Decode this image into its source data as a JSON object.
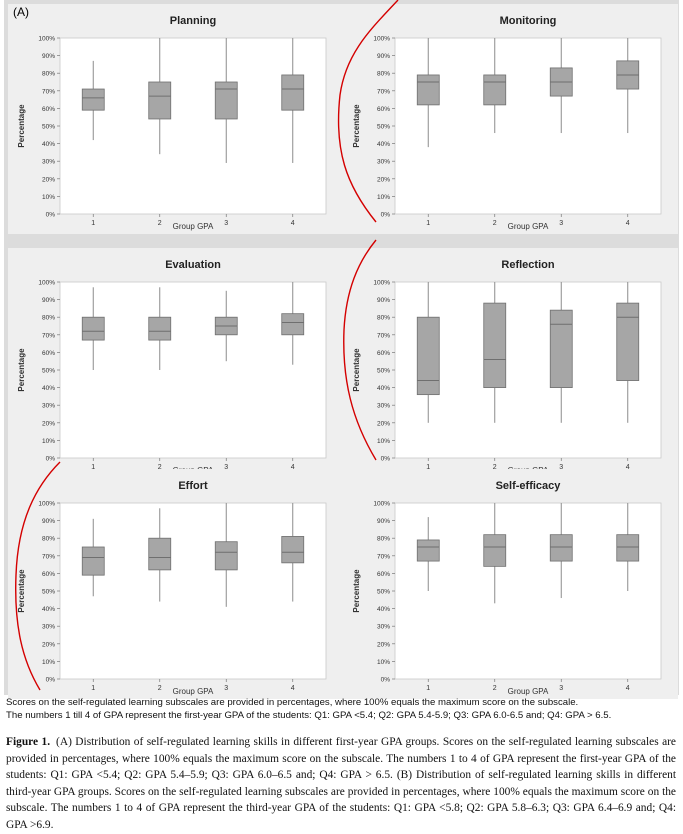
{
  "panel_letter": "(A)",
  "notes": [
    "Scores on the self-regulated learning subscales are provided in percentages, where 100% equals the maximum score on the subscale.",
    "The numbers 1 till 4 of GPA represent the first-year GPA of the students: Q1: GPA <5.4; Q2: GPA 5.4-5.9; Q3: GPA 6.0-6.5 and; Q4: GPA > 6.5."
  ],
  "caption": {
    "label": "Figure 1.",
    "text": "(A) Distribution of self-regulated learning skills in different first-year GPA groups. Scores on the self-regulated learning subscales are provided in percentages, where 100% equals the maximum score on the subscale. The numbers 1 to 4 of GPA represent the first-year GPA of the students: Q1: GPA <5.4; Q2: GPA 5.4–5.9; Q3: GPA 6.0–6.5 and; Q4: GPA > 6.5. (B) Distribution of self-regulated learning skills in different third-year GPA groups. Scores on the self-regulated learning subscales are provided in percentages, where 100% equals the maximum score on the subscale. The numbers 1 to 4 of GPA represent the third-year GPA of the students: Q1: GPA <5.8; Q2: GPA 5.8–6.3; Q3: GPA 6.4–6.9 and; Q4: GPA >6.9."
  },
  "colors": {
    "box_fill": "#a6a6a6",
    "box_stroke": "#6f6f6f",
    "whisker": "#8c8c8c",
    "annotation": "#d40000"
  },
  "chart_data": [
    {
      "type": "boxplot",
      "title": "Planning",
      "xlabel": "Group GPA",
      "ylabel": "Percentage",
      "categories": [
        "1",
        "2",
        "3",
        "4"
      ],
      "ylim": [
        0,
        100
      ],
      "yticks": [
        "0%",
        "10%",
        "20%",
        "30%",
        "40%",
        "50%",
        "60%",
        "70%",
        "80%",
        "90%",
        "100%"
      ],
      "boxes": [
        {
          "min": 42,
          "q1": 59,
          "median": 66,
          "q3": 71,
          "max": 87
        },
        {
          "min": 34,
          "q1": 54,
          "median": 67,
          "q3": 75,
          "max": 100
        },
        {
          "min": 29,
          "q1": 54,
          "median": 71,
          "q3": 75,
          "max": 100
        },
        {
          "min": 29,
          "q1": 59,
          "median": 71,
          "q3": 79,
          "max": 100
        }
      ]
    },
    {
      "type": "boxplot",
      "title": "Monitoring",
      "xlabel": "Group GPA",
      "ylabel": "Percentage",
      "categories": [
        "1",
        "2",
        "3",
        "4"
      ],
      "ylim": [
        0,
        100
      ],
      "yticks": [
        "0%",
        "10%",
        "20%",
        "30%",
        "40%",
        "50%",
        "60%",
        "70%",
        "80%",
        "90%",
        "100%"
      ],
      "boxes": [
        {
          "min": 38,
          "q1": 62,
          "median": 75,
          "q3": 79,
          "max": 100
        },
        {
          "min": 46,
          "q1": 62,
          "median": 75,
          "q3": 79,
          "max": 100
        },
        {
          "min": 46,
          "q1": 67,
          "median": 75,
          "q3": 83,
          "max": 100
        },
        {
          "min": 46,
          "q1": 71,
          "median": 79,
          "q3": 87,
          "max": 100
        }
      ]
    },
    {
      "type": "boxplot",
      "title": "Evaluation",
      "xlabel": "Group GPA",
      "ylabel": "Percentage",
      "categories": [
        "1",
        "2",
        "3",
        "4"
      ],
      "ylim": [
        0,
        100
      ],
      "yticks": [
        "0%",
        "10%",
        "20%",
        "30%",
        "40%",
        "50%",
        "60%",
        "70%",
        "80%",
        "90%",
        "100%"
      ],
      "boxes": [
        {
          "min": 50,
          "q1": 67,
          "median": 72,
          "q3": 80,
          "max": 97
        },
        {
          "min": 50,
          "q1": 67,
          "median": 72,
          "q3": 80,
          "max": 97
        },
        {
          "min": 55,
          "q1": 70,
          "median": 75,
          "q3": 80,
          "max": 95
        },
        {
          "min": 53,
          "q1": 70,
          "median": 77,
          "q3": 82,
          "max": 100
        }
      ]
    },
    {
      "type": "boxplot",
      "title": "Reflection",
      "xlabel": "Group GPA",
      "ylabel": "Percentage",
      "categories": [
        "1",
        "2",
        "3",
        "4"
      ],
      "ylim": [
        0,
        100
      ],
      "yticks": [
        "0%",
        "10%",
        "20%",
        "30%",
        "40%",
        "50%",
        "60%",
        "70%",
        "80%",
        "90%",
        "100%"
      ],
      "boxes": [
        {
          "min": 20,
          "q1": 36,
          "median": 44,
          "q3": 80,
          "max": 100
        },
        {
          "min": 20,
          "q1": 40,
          "median": 56,
          "q3": 88,
          "max": 100
        },
        {
          "min": 20,
          "q1": 40,
          "median": 76,
          "q3": 84,
          "max": 100
        },
        {
          "min": 20,
          "q1": 44,
          "median": 80,
          "q3": 88,
          "max": 100
        }
      ]
    },
    {
      "type": "boxplot",
      "title": "Effort",
      "xlabel": "Group GPA",
      "ylabel": "Percentage",
      "categories": [
        "1",
        "2",
        "3",
        "4"
      ],
      "ylim": [
        0,
        100
      ],
      "yticks": [
        "0%",
        "10%",
        "20%",
        "30%",
        "40%",
        "50%",
        "60%",
        "70%",
        "80%",
        "90%",
        "100%"
      ],
      "boxes": [
        {
          "min": 47,
          "q1": 59,
          "median": 69,
          "q3": 75,
          "max": 91
        },
        {
          "min": 44,
          "q1": 62,
          "median": 69,
          "q3": 80,
          "max": 97
        },
        {
          "min": 41,
          "q1": 62,
          "median": 72,
          "q3": 78,
          "max": 100
        },
        {
          "min": 44,
          "q1": 66,
          "median": 72,
          "q3": 81,
          "max": 100
        }
      ]
    },
    {
      "type": "boxplot",
      "title": "Self-efficacy",
      "xlabel": "Group GPA",
      "ylabel": "Percentage",
      "categories": [
        "1",
        "2",
        "3",
        "4"
      ],
      "ylim": [
        0,
        100
      ],
      "yticks": [
        "0%",
        "10%",
        "20%",
        "30%",
        "40%",
        "50%",
        "60%",
        "70%",
        "80%",
        "90%",
        "100%"
      ],
      "boxes": [
        {
          "min": 50,
          "q1": 67,
          "median": 75,
          "q3": 79,
          "max": 92
        },
        {
          "min": 43,
          "q1": 64,
          "median": 75,
          "q3": 82,
          "max": 100
        },
        {
          "min": 46,
          "q1": 67,
          "median": 75,
          "q3": 82,
          "max": 100
        },
        {
          "min": 50,
          "q1": 67,
          "median": 75,
          "q3": 82,
          "max": 100
        }
      ]
    }
  ]
}
